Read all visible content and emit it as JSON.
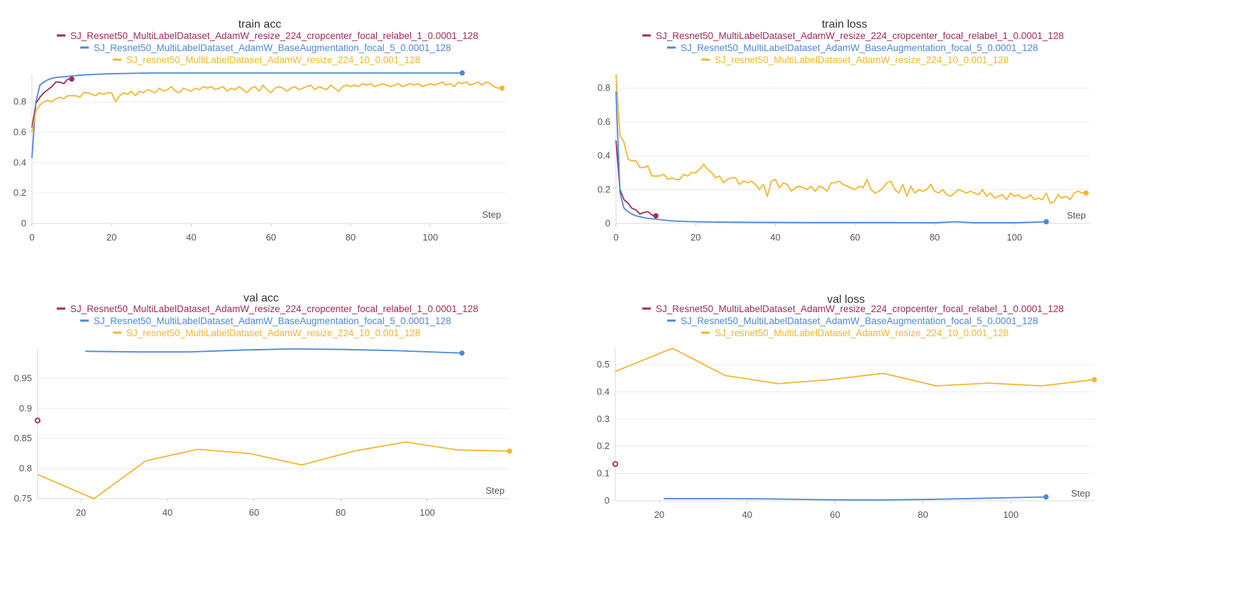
{
  "colors": {
    "magenta": "#9e2a5c",
    "blue": "#4d88db",
    "orange": "#f1b730"
  },
  "chart_data": [
    {
      "id": "train-acc",
      "type": "line",
      "title": "train acc",
      "xlabel": "Step",
      "xlim": [
        0,
        119
      ],
      "ylim": [
        0,
        0.98
      ],
      "xticks": [
        0,
        20,
        40,
        60,
        80,
        100
      ],
      "yticks": [
        0,
        0.2,
        0.4,
        0.6,
        0.8
      ],
      "legend": "top-center",
      "grid": true,
      "series": [
        {
          "name": "SJ_Resnet50_MultiLabelDataset_AdamW_resize_224_cropcenter_focal_relabel_1_0.0001_128",
          "color": "#9e2a5c",
          "end_marker": true,
          "x": [
            0,
            1,
            2,
            3,
            4,
            5,
            6,
            7,
            8,
            9,
            10
          ],
          "y": [
            0.63,
            0.79,
            0.83,
            0.86,
            0.88,
            0.9,
            0.93,
            0.93,
            0.92,
            0.95,
            0.95
          ]
        },
        {
          "name": "SJ_Resnet50_MultiLabelDataset_AdamW_BaseAugmentation_focal_5_0.0001_128",
          "color": "#4d88db",
          "end_marker": true,
          "x": [
            0,
            1,
            2,
            3,
            4,
            5,
            6,
            8,
            10,
            12,
            15,
            20,
            30,
            40,
            50,
            60,
            70,
            80,
            90,
            100,
            108
          ],
          "y": [
            0.43,
            0.8,
            0.91,
            0.93,
            0.945,
            0.955,
            0.96,
            0.965,
            0.97,
            0.975,
            0.98,
            0.985,
            0.99,
            0.99,
            0.99,
            0.99,
            0.99,
            0.99,
            0.99,
            0.99,
            0.99
          ]
        },
        {
          "name": "SJ_resnet50_MultiLabelDataset_AdamW_resize_224_10_0.001_128",
          "color": "#f1b730",
          "end_marker": true,
          "x": [
            0,
            1,
            2,
            3,
            4,
            5,
            6,
            7,
            8,
            9,
            10,
            11,
            12,
            13,
            14,
            15,
            16,
            17,
            18,
            19,
            20,
            21,
            22,
            23,
            24,
            25,
            26,
            27,
            28,
            29,
            30,
            31,
            32,
            33,
            34,
            35,
            36,
            37,
            38,
            39,
            40,
            41,
            42,
            43,
            44,
            45,
            46,
            47,
            48,
            49,
            50,
            51,
            52,
            53,
            54,
            55,
            56,
            57,
            58,
            59,
            60,
            61,
            62,
            63,
            64,
            65,
            66,
            67,
            68,
            69,
            70,
            71,
            72,
            73,
            74,
            75,
            76,
            77,
            78,
            79,
            80,
            81,
            82,
            83,
            84,
            85,
            86,
            87,
            88,
            89,
            90,
            91,
            92,
            93,
            94,
            95,
            96,
            97,
            98,
            99,
            100,
            101,
            102,
            103,
            104,
            105,
            106,
            107,
            108,
            109,
            110,
            111,
            112,
            113,
            114,
            115,
            116,
            117,
            118
          ],
          "y": [
            0.6,
            0.74,
            0.78,
            0.8,
            0.81,
            0.8,
            0.82,
            0.83,
            0.82,
            0.84,
            0.84,
            0.84,
            0.83,
            0.86,
            0.86,
            0.85,
            0.84,
            0.86,
            0.85,
            0.86,
            0.86,
            0.8,
            0.84,
            0.86,
            0.85,
            0.87,
            0.84,
            0.87,
            0.86,
            0.88,
            0.87,
            0.86,
            0.89,
            0.87,
            0.88,
            0.9,
            0.87,
            0.86,
            0.89,
            0.88,
            0.87,
            0.89,
            0.88,
            0.9,
            0.89,
            0.9,
            0.88,
            0.89,
            0.9,
            0.87,
            0.89,
            0.88,
            0.9,
            0.88,
            0.86,
            0.89,
            0.9,
            0.87,
            0.91,
            0.88,
            0.86,
            0.89,
            0.9,
            0.89,
            0.87,
            0.89,
            0.9,
            0.88,
            0.89,
            0.9,
            0.91,
            0.88,
            0.9,
            0.89,
            0.88,
            0.91,
            0.89,
            0.87,
            0.9,
            0.91,
            0.9,
            0.91,
            0.9,
            0.92,
            0.91,
            0.92,
            0.9,
            0.91,
            0.92,
            0.91,
            0.9,
            0.91,
            0.92,
            0.9,
            0.91,
            0.92,
            0.91,
            0.92,
            0.9,
            0.91,
            0.92,
            0.91,
            0.92,
            0.93,
            0.91,
            0.92,
            0.9,
            0.93,
            0.92,
            0.93,
            0.91,
            0.92,
            0.93,
            0.91,
            0.93,
            0.92,
            0.9,
            0.89,
            0.89
          ]
        }
      ]
    },
    {
      "id": "train-loss",
      "type": "line",
      "title": "train loss",
      "xlabel": "Step",
      "xlim": [
        0,
        119
      ],
      "ylim": [
        0,
        0.88
      ],
      "xticks": [
        0,
        20,
        40,
        60,
        80,
        100
      ],
      "yticks": [
        0,
        0.2,
        0.4,
        0.6,
        0.8
      ],
      "legend": "top-center",
      "grid": true,
      "series": [
        {
          "name": "SJ_Resnet50_MultiLabelDataset_AdamW_resize_224_cropcenter_focal_relabel_1_0.0001_128",
          "color": "#9e2a5c",
          "end_marker": true,
          "x": [
            0,
            1,
            2,
            3,
            4,
            5,
            6,
            7,
            8,
            9,
            10
          ],
          "y": [
            0.49,
            0.2,
            0.14,
            0.12,
            0.09,
            0.08,
            0.055,
            0.065,
            0.07,
            0.05,
            0.045
          ]
        },
        {
          "name": "SJ_Resnet50_MultiLabelDataset_AdamW_BaseAugmentation_focal_5_0.0001_128",
          "color": "#4d88db",
          "end_marker": true,
          "x": [
            0,
            1,
            2,
            3,
            4,
            5,
            6,
            8,
            10,
            12,
            14,
            17,
            20,
            25,
            30,
            40,
            50,
            60,
            70,
            80,
            85,
            90,
            100,
            108
          ],
          "y": [
            0.78,
            0.18,
            0.09,
            0.07,
            0.055,
            0.045,
            0.04,
            0.03,
            0.025,
            0.02,
            0.015,
            0.012,
            0.01,
            0.008,
            0.007,
            0.006,
            0.005,
            0.005,
            0.005,
            0.004,
            0.01,
            0.004,
            0.004,
            0.01
          ]
        },
        {
          "name": "SJ_resnet50_MultiLabelDataset_AdamW_resize_224_10_0.001_128",
          "color": "#f1b730",
          "end_marker": true,
          "x": [
            0,
            1,
            2,
            3,
            4,
            5,
            6,
            7,
            8,
            9,
            10,
            11,
            12,
            13,
            14,
            15,
            16,
            17,
            18,
            19,
            20,
            21,
            22,
            23,
            24,
            25,
            26,
            27,
            28,
            29,
            30,
            31,
            32,
            33,
            34,
            35,
            36,
            37,
            38,
            39,
            40,
            41,
            42,
            43,
            44,
            45,
            46,
            47,
            48,
            49,
            50,
            51,
            52,
            53,
            54,
            55,
            56,
            57,
            58,
            59,
            60,
            61,
            62,
            63,
            64,
            65,
            66,
            67,
            68,
            69,
            70,
            71,
            72,
            73,
            74,
            75,
            76,
            77,
            78,
            79,
            80,
            81,
            82,
            83,
            84,
            85,
            86,
            87,
            88,
            89,
            90,
            91,
            92,
            93,
            94,
            95,
            96,
            97,
            98,
            99,
            100,
            101,
            102,
            103,
            104,
            105,
            106,
            107,
            108,
            109,
            110,
            111,
            112,
            113,
            114,
            115,
            116,
            117,
            118
          ],
          "y": [
            0.88,
            0.52,
            0.48,
            0.38,
            0.37,
            0.37,
            0.33,
            0.33,
            0.34,
            0.28,
            0.28,
            0.28,
            0.29,
            0.26,
            0.27,
            0.26,
            0.26,
            0.29,
            0.28,
            0.3,
            0.3,
            0.32,
            0.35,
            0.32,
            0.3,
            0.27,
            0.28,
            0.24,
            0.26,
            0.27,
            0.27,
            0.23,
            0.25,
            0.24,
            0.25,
            0.23,
            0.2,
            0.23,
            0.16,
            0.25,
            0.26,
            0.21,
            0.24,
            0.23,
            0.19,
            0.21,
            0.22,
            0.21,
            0.2,
            0.22,
            0.19,
            0.22,
            0.21,
            0.19,
            0.24,
            0.24,
            0.25,
            0.23,
            0.22,
            0.21,
            0.2,
            0.22,
            0.21,
            0.26,
            0.2,
            0.18,
            0.19,
            0.21,
            0.24,
            0.25,
            0.2,
            0.18,
            0.23,
            0.16,
            0.22,
            0.18,
            0.2,
            0.19,
            0.2,
            0.23,
            0.19,
            0.18,
            0.2,
            0.17,
            0.16,
            0.18,
            0.2,
            0.19,
            0.18,
            0.19,
            0.18,
            0.17,
            0.2,
            0.16,
            0.18,
            0.15,
            0.16,
            0.17,
            0.14,
            0.18,
            0.16,
            0.17,
            0.15,
            0.15,
            0.17,
            0.14,
            0.15,
            0.14,
            0.18,
            0.12,
            0.13,
            0.17,
            0.15,
            0.16,
            0.14,
            0.18,
            0.19,
            0.18,
            0.18
          ]
        }
      ]
    },
    {
      "id": "val-acc",
      "type": "line",
      "title": "val acc",
      "xlabel": "Step",
      "xlim": [
        10,
        119
      ],
      "ylim": [
        0.75,
        1.0
      ],
      "xticks": [
        20,
        40,
        60,
        80,
        100
      ],
      "yticks": [
        0.75,
        0.8,
        0.85,
        0.9,
        0.95
      ],
      "legend": "top-center",
      "grid": true,
      "series": [
        {
          "name": "SJ_Resnet50_MultiLabelDataset_AdamW_resize_224_cropcenter_focal_relabel_1_0.0001_128",
          "color": "#9e2a5c",
          "end_marker": true,
          "x": [
            10
          ],
          "y": [
            0.88
          ]
        },
        {
          "name": "SJ_Resnet50_MultiLabelDataset_AdamW_BaseAugmentation_focal_5_0.0001_128",
          "color": "#4d88db",
          "end_marker": true,
          "x": [
            21,
            33,
            45,
            57,
            69,
            81,
            93,
            108
          ],
          "y": [
            0.995,
            0.994,
            0.994,
            0.997,
            0.999,
            0.998,
            0.996,
            0.992
          ]
        },
        {
          "name": "SJ_resnet50_MultiLabelDataset_AdamW_resize_224_10_0.001_128",
          "color": "#f1b730",
          "end_marker": true,
          "x": [
            10,
            23,
            35,
            47,
            59,
            71,
            83,
            95,
            107,
            119
          ],
          "y": [
            0.79,
            0.75,
            0.813,
            0.832,
            0.825,
            0.806,
            0.829,
            0.844,
            0.831,
            0.829
          ]
        }
      ]
    },
    {
      "id": "val-loss",
      "type": "line",
      "title": "val loss",
      "xlabel": "Step",
      "xlim": [
        10,
        119
      ],
      "ylim": [
        0,
        0.56
      ],
      "xticks": [
        20,
        40,
        60,
        80,
        100
      ],
      "yticks": [
        0,
        0.1,
        0.2,
        0.3,
        0.4,
        0.5
      ],
      "legend": "top-center",
      "grid": true,
      "series": [
        {
          "name": "SJ_Resnet50_MultiLabelDataset_AdamW_resize_224_cropcenter_focal_relabel_1_0.0001_128",
          "color": "#9e2a5c",
          "end_marker": true,
          "x": [
            10
          ],
          "y": [
            0.135
          ]
        },
        {
          "name": "SJ_Resnet50_MultiLabelDataset_AdamW_BaseAugmentation_focal_5_0.0001_128",
          "color": "#4d88db",
          "end_marker": true,
          "x": [
            21,
            33,
            45,
            57,
            69,
            81,
            93,
            108
          ],
          "y": [
            0.008,
            0.008,
            0.007,
            0.004,
            0.003,
            0.005,
            0.009,
            0.014
          ]
        },
        {
          "name": "SJ_resnet50_MultiLabelDataset_AdamW_resize_224_10_0.001_128",
          "color": "#f1b730",
          "end_marker": true,
          "x": [
            10,
            23,
            35,
            47,
            59,
            71,
            83,
            95,
            107,
            119
          ],
          "y": [
            0.475,
            0.56,
            0.46,
            0.43,
            0.445,
            0.468,
            0.422,
            0.432,
            0.422,
            0.445
          ]
        }
      ]
    }
  ]
}
